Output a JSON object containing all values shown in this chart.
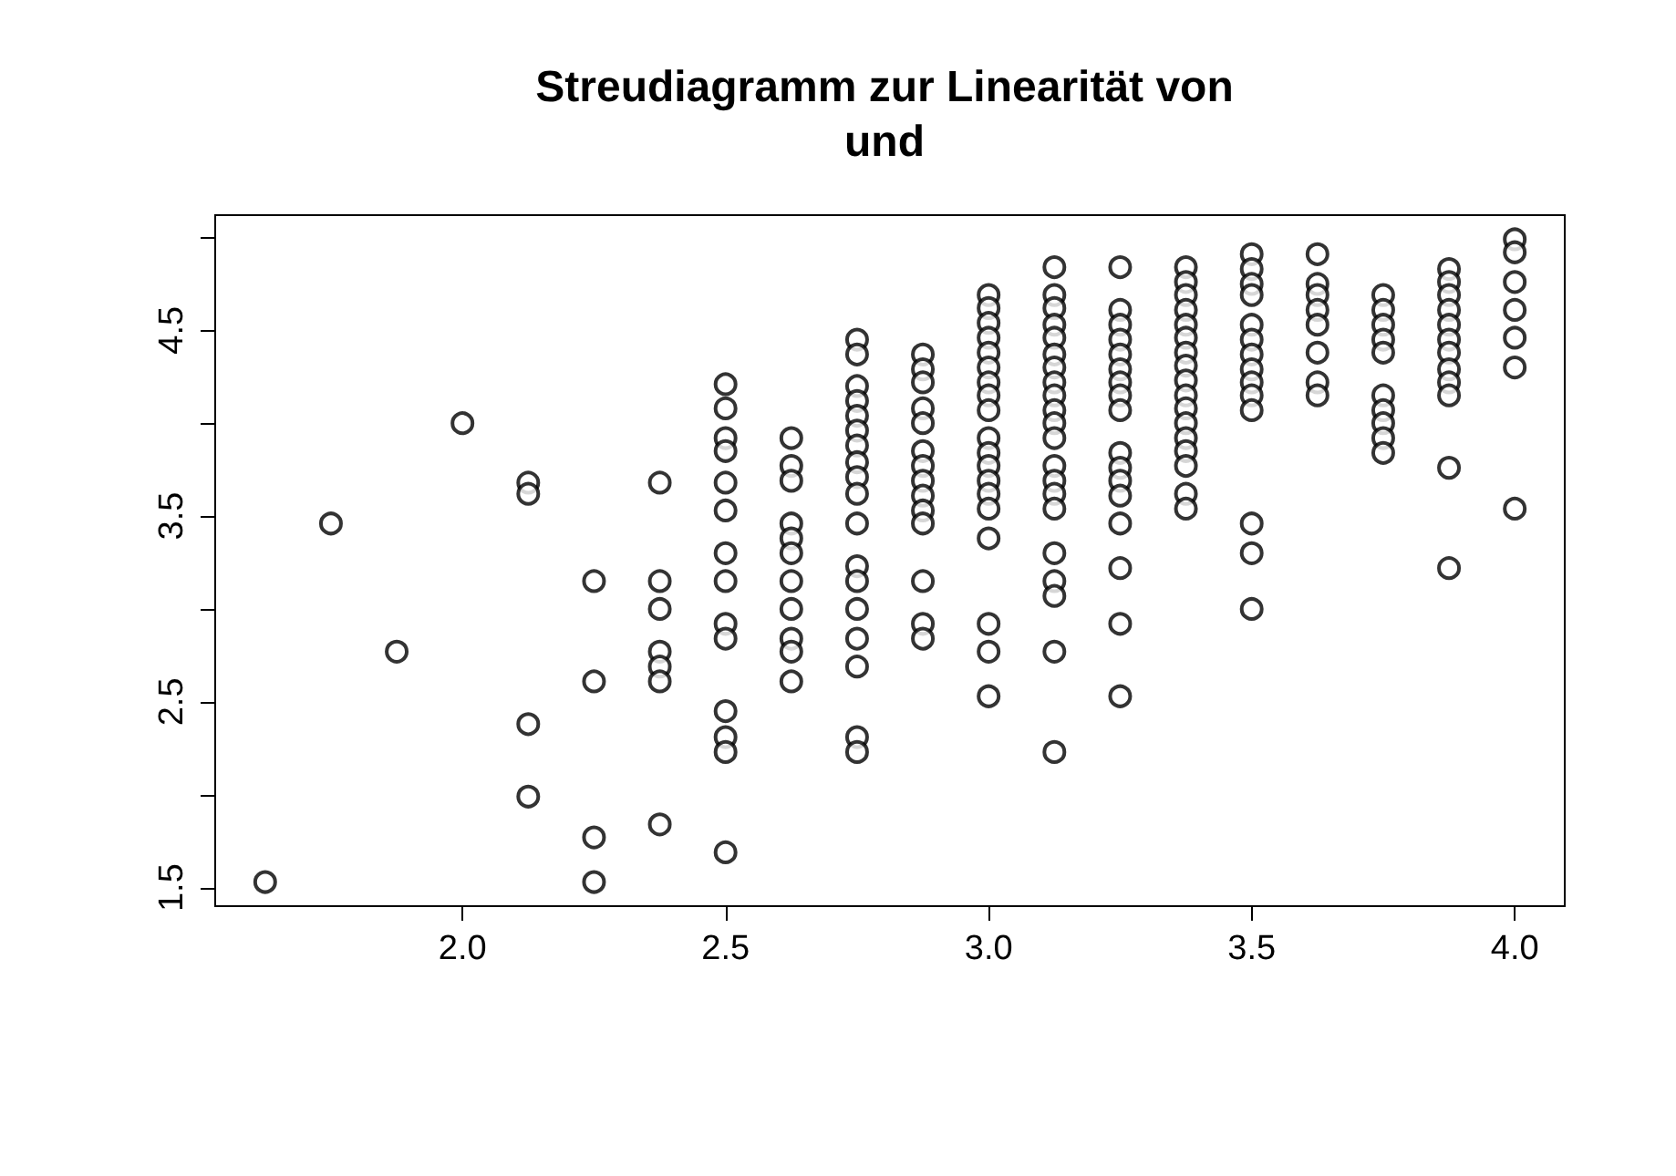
{
  "chart_data": {
    "type": "scatter",
    "title": "Streudiagramm zur Linearität von\nund",
    "x": [
      1.625,
      1.75,
      1.875,
      2.0,
      2.125,
      2.125,
      2.125,
      2.125,
      2.25,
      2.25,
      2.25,
      2.25,
      2.375,
      2.375,
      2.375,
      2.375,
      2.375,
      2.375,
      2.375,
      2.5,
      2.5,
      2.5,
      2.5,
      2.5,
      2.5,
      2.5,
      2.5,
      2.5,
      2.5,
      2.5,
      2.5,
      2.5,
      2.5,
      2.625,
      2.625,
      2.625,
      2.625,
      2.625,
      2.625,
      2.625,
      2.625,
      2.625,
      2.625,
      2.625,
      2.75,
      2.75,
      2.75,
      2.75,
      2.75,
      2.75,
      2.75,
      2.75,
      2.75,
      2.75,
      2.75,
      2.75,
      2.75,
      2.75,
      2.75,
      2.75,
      2.75,
      2.75,
      2.875,
      2.875,
      2.875,
      2.875,
      2.875,
      2.875,
      2.875,
      2.875,
      2.875,
      2.875,
      2.875,
      2.875,
      2.875,
      2.875,
      3.0,
      3.0,
      3.0,
      3.0,
      3.0,
      3.0,
      3.0,
      3.0,
      3.0,
      3.0,
      3.0,
      3.0,
      3.0,
      3.0,
      3.0,
      3.0,
      3.0,
      3.0,
      3.0,
      3.125,
      3.125,
      3.125,
      3.125,
      3.125,
      3.125,
      3.125,
      3.125,
      3.125,
      3.125,
      3.125,
      3.125,
      3.125,
      3.125,
      3.125,
      3.125,
      3.125,
      3.125,
      3.125,
      3.125,
      3.125,
      3.25,
      3.25,
      3.25,
      3.25,
      3.25,
      3.25,
      3.25,
      3.25,
      3.25,
      3.25,
      3.25,
      3.25,
      3.25,
      3.25,
      3.25,
      3.25,
      3.25,
      3.375,
      3.375,
      3.375,
      3.375,
      3.375,
      3.375,
      3.375,
      3.375,
      3.375,
      3.375,
      3.375,
      3.375,
      3.375,
      3.375,
      3.375,
      3.375,
      3.375,
      3.5,
      3.5,
      3.5,
      3.5,
      3.5,
      3.5,
      3.5,
      3.5,
      3.5,
      3.5,
      3.5,
      3.5,
      3.5,
      3.5,
      3.625,
      3.625,
      3.625,
      3.625,
      3.625,
      3.625,
      3.625,
      3.625,
      3.75,
      3.75,
      3.75,
      3.75,
      3.75,
      3.75,
      3.75,
      3.75,
      3.75,
      3.75,
      3.875,
      3.875,
      3.875,
      3.875,
      3.875,
      3.875,
      3.875,
      3.875,
      3.875,
      3.875,
      3.875,
      3.875,
      4.0,
      4.0,
      4.0,
      4.0,
      4.0,
      4.0,
      4.0
    ],
    "values": [
      1.53,
      3.46,
      2.77,
      4.0,
      3.68,
      3.62,
      2.38,
      1.99,
      3.15,
      2.61,
      1.77,
      1.53,
      3.68,
      3.15,
      3.0,
      2.77,
      2.69,
      2.61,
      1.84,
      4.21,
      4.08,
      3.92,
      3.85,
      3.68,
      3.53,
      3.3,
      3.15,
      2.92,
      2.84,
      2.45,
      2.31,
      2.23,
      1.69,
      3.92,
      3.77,
      3.69,
      3.46,
      3.38,
      3.3,
      3.15,
      3.0,
      2.84,
      2.77,
      2.61,
      4.45,
      4.37,
      4.2,
      4.12,
      4.04,
      3.96,
      3.88,
      3.79,
      3.71,
      3.62,
      3.46,
      3.23,
      3.15,
      3.0,
      2.84,
      2.69,
      2.31,
      2.23,
      4.37,
      4.29,
      4.22,
      4.08,
      4.0,
      3.85,
      3.77,
      3.69,
      3.61,
      3.53,
      3.46,
      3.15,
      2.92,
      2.84,
      4.69,
      4.62,
      4.54,
      4.46,
      4.38,
      4.3,
      4.22,
      4.15,
      4.07,
      3.92,
      3.84,
      3.77,
      3.69,
      3.62,
      3.54,
      3.38,
      2.92,
      2.77,
      2.53,
      4.84,
      4.69,
      4.62,
      4.53,
      4.46,
      4.37,
      4.3,
      4.22,
      4.15,
      4.07,
      4.0,
      3.92,
      3.77,
      3.69,
      3.62,
      3.54,
      3.3,
      3.15,
      3.07,
      2.77,
      2.23,
      4.84,
      4.61,
      4.53,
      4.45,
      4.37,
      4.29,
      4.22,
      4.15,
      4.07,
      3.84,
      3.76,
      3.69,
      3.61,
      3.46,
      3.22,
      2.92,
      2.53,
      4.84,
      4.76,
      4.69,
      4.61,
      4.53,
      4.46,
      4.38,
      4.31,
      4.23,
      4.15,
      4.08,
      4.0,
      3.92,
      3.85,
      3.77,
      3.62,
      3.54,
      4.91,
      4.83,
      4.75,
      4.69,
      4.53,
      4.45,
      4.37,
      4.29,
      4.22,
      4.15,
      4.07,
      3.46,
      3.3,
      3.0,
      4.91,
      4.75,
      4.69,
      4.61,
      4.53,
      4.38,
      4.22,
      4.15,
      4.69,
      4.61,
      4.53,
      4.45,
      4.38,
      4.15,
      4.07,
      4.0,
      3.92,
      3.84,
      4.83,
      4.76,
      4.69,
      4.61,
      4.53,
      4.45,
      4.38,
      4.29,
      4.22,
      4.15,
      3.76,
      3.22,
      4.99,
      4.92,
      4.76,
      4.61,
      4.46,
      4.3,
      3.54
    ],
    "color": "#000000",
    "marker": "circle",
    "xlim": [
      1.53,
      4.095
    ],
    "xticks": [
      {
        "value": 2,
        "label": "2.0"
      },
      2.5,
      {
        "value": 3,
        "label": "3.0"
      },
      3.5,
      {
        "value": 4,
        "label": "4.0"
      }
    ],
    "ylim": [
      1.4,
      5.12
    ],
    "yticks": [
      1.5,
      {
        "value": 2,
        "label": null
      },
      2.5,
      {
        "value": 3,
        "label": null
      },
      3.5,
      {
        "value": 4,
        "label": null
      },
      4.5,
      {
        "value": 5,
        "label": null
      }
    ],
    "grid": false
  }
}
